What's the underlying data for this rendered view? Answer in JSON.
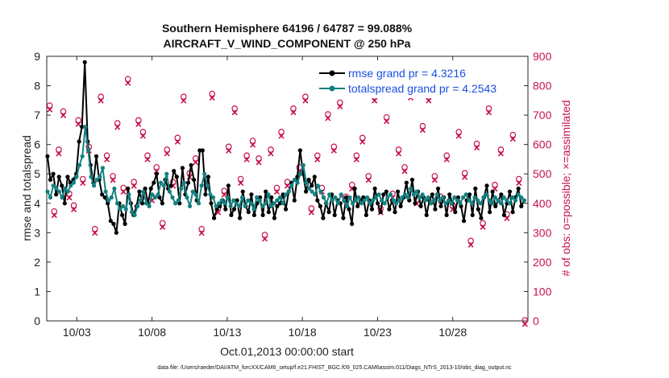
{
  "chart_data": {
    "type": "line",
    "title": "Southern Hemisphere 64196 / 64787 = 99.088%",
    "subtitle": "AIRCRAFT_V_WIND_COMPONENT @ 250 hPa",
    "xlabel": "Oct.01,2013 00:00:00 start",
    "ylabel_left": "rmse and totalspread",
    "ylabel_right": "# of obs: o=possible; ×=assimilated",
    "xlim": [
      1,
      33
    ],
    "ylim_left": [
      0,
      9
    ],
    "ylim_right": [
      0,
      900
    ],
    "xticks": [
      3,
      8,
      13,
      18,
      23,
      28
    ],
    "xtick_labels": [
      "10/03",
      "10/08",
      "10/13",
      "10/18",
      "10/23",
      "10/28"
    ],
    "yticks_left": [
      "0",
      "1",
      "2",
      "3",
      "4",
      "5",
      "6",
      "7",
      "8",
      "9"
    ],
    "yticks_right": [
      "0",
      "100",
      "200",
      "300",
      "400",
      "500",
      "600",
      "700",
      "800",
      "900"
    ],
    "legend": [
      "rmse grand pr = 4.3216",
      "totalspread grand pr = 4.2543"
    ],
    "series": [
      {
        "name": "rmse",
        "color": "#000000",
        "values": [
          5.6,
          4.8,
          5.0,
          4.3,
          4.9,
          4.6,
          4.0,
          4.9,
          4.7,
          4.8,
          5.0,
          6.1,
          6.6,
          8.8,
          6.1,
          5.3,
          4.7,
          5.6,
          4.8,
          4.3,
          4.2,
          4.0,
          3.4,
          3.3,
          3.0,
          4.0,
          3.6,
          3.3,
          4.5,
          4.0,
          3.6,
          3.9,
          4.4,
          4.0,
          4.5,
          4.0,
          4.5,
          4.7,
          5.0,
          4.2,
          4.0,
          4.8,
          4.5,
          4.6,
          5.1,
          4.9,
          4.0,
          5.2,
          4.3,
          4.7,
          5.3,
          4.8,
          4.1,
          5.8,
          5.8,
          4.3,
          4.9,
          4.0,
          3.5,
          3.8,
          3.9,
          4.1,
          3.8,
          4.6,
          3.6,
          3.8,
          4.1,
          3.5,
          4.4,
          3.9,
          3.7,
          4.3,
          3.6,
          4.0,
          4.2,
          3.6,
          4.4,
          3.7,
          4.2,
          3.5,
          3.9,
          4.0,
          4.3,
          3.8,
          4.4,
          4.7,
          4.1,
          4.9,
          5.8,
          5.0,
          4.4,
          4.8,
          4.6,
          4.9,
          4.1,
          3.9,
          3.5,
          4.0,
          3.7,
          4.3,
          3.6,
          4.1,
          4.0,
          3.5,
          4.2,
          3.8,
          3.3,
          4.5,
          3.9,
          4.1,
          4.2,
          3.6,
          4.1,
          3.8,
          4.5,
          4.0,
          3.7,
          4.3,
          4.4,
          3.8,
          4.1,
          3.7,
          4.4,
          3.9,
          4.2,
          4.7,
          4.1,
          4.8,
          4.0,
          4.4,
          3.9,
          4.2,
          3.6,
          4.1,
          4.3,
          3.8,
          4.5,
          3.9,
          4.2,
          3.6,
          4.3,
          4.0,
          3.7,
          4.2,
          3.9,
          3.4,
          4.1,
          4.3,
          3.6,
          4.5,
          3.8,
          3.5,
          4.2,
          4.6,
          3.7,
          4.4,
          3.9,
          4.1,
          4.3,
          3.6,
          4.0,
          4.4,
          3.7,
          4.2,
          4.5,
          3.9,
          4.1
        ],
        "marker": "o"
      },
      {
        "name": "totalspread",
        "color": "#148080",
        "values": [
          4.4,
          4.2,
          4.6,
          4.5,
          4.4,
          4.2,
          4.5,
          4.4,
          4.6,
          4.7,
          4.9,
          5.3,
          5.6,
          6.6,
          5.8,
          4.9,
          4.6,
          4.8,
          4.9,
          5.2,
          4.4,
          4.1,
          4.2,
          4.5,
          4.0,
          3.8,
          3.9,
          3.8,
          4.3,
          3.7,
          3.6,
          3.9,
          4.1,
          4.4,
          4.0,
          3.9,
          4.3,
          4.2,
          4.3,
          4.7,
          4.6,
          5.0,
          4.4,
          4.2,
          4.0,
          4.1,
          4.5,
          4.7,
          4.2,
          3.9,
          4.4,
          4.3,
          4.0,
          4.6,
          5.0,
          4.6,
          4.3,
          4.2,
          3.9,
          4.0,
          4.1,
          4.0,
          4.2,
          3.9,
          4.1,
          4.0,
          3.9,
          4.2,
          3.9,
          4.1,
          4.0,
          3.8,
          4.2,
          4.1,
          3.9,
          4.0,
          4.3,
          3.9,
          4.0,
          4.1,
          4.2,
          4.0,
          4.3,
          4.4,
          4.6,
          4.8,
          4.7,
          5.0,
          5.3,
          4.7,
          4.5,
          4.4,
          4.3,
          4.6,
          4.4,
          4.2,
          4.0,
          4.3,
          4.1,
          4.2,
          4.0,
          4.3,
          4.1,
          3.9,
          4.2,
          4.0,
          4.1,
          4.2,
          4.0,
          4.1,
          4.2,
          4.0,
          4.1,
          4.2,
          4.3,
          4.1,
          4.0,
          4.2,
          4.3,
          4.1,
          4.0,
          4.1,
          4.2,
          4.3,
          4.2,
          4.5,
          4.3,
          4.4,
          4.2,
          4.3,
          4.1,
          4.2,
          4.0,
          4.1,
          4.3,
          4.1,
          4.2,
          4.0,
          4.1,
          4.0,
          4.2,
          4.1,
          4.0,
          4.2,
          4.3,
          4.1,
          4.0,
          4.2,
          4.1,
          4.0,
          4.2,
          4.3,
          4.1,
          4.0,
          4.2,
          4.1,
          4.0,
          4.2,
          4.1,
          4.0,
          4.2,
          4.1,
          4.3,
          4.2,
          4.1
        ],
        "marker": "o"
      }
    ],
    "obs_counts": {
      "name": "# of obs",
      "color": "#c8124e",
      "x": [
        1.2,
        1.5,
        1.8,
        2.1,
        2.5,
        2.8,
        3.1,
        3.4,
        3.8,
        4.2,
        4.6,
        5.0,
        5.4,
        5.7,
        6.1,
        6.4,
        6.8,
        7.1,
        7.4,
        7.7,
        8.0,
        8.3,
        8.7,
        9.0,
        9.4,
        9.7,
        10.1,
        10.5,
        10.9,
        11.3,
        11.6,
        12.0,
        12.4,
        12.8,
        13.1,
        13.5,
        13.9,
        14.3,
        14.7,
        15.1,
        15.5,
        15.9,
        16.3,
        16.6,
        17.0,
        17.4,
        17.8,
        18.2,
        18.6,
        19.0,
        19.3,
        19.7,
        20.1,
        20.5,
        20.9,
        21.3,
        21.6,
        22.0,
        22.4,
        22.8,
        23.2,
        23.6,
        24.0,
        24.4,
        24.8,
        25.2,
        25.6,
        26.0,
        26.4,
        26.8,
        27.2,
        27.6,
        28.0,
        28.4,
        28.8,
        29.2,
        29.6,
        30.0,
        30.4,
        30.8,
        31.2,
        31.6,
        32.0,
        32.4,
        32.8
      ],
      "values": [
        730,
        370,
        580,
        710,
        430,
        390,
        680,
        480,
        590,
        310,
        760,
        560,
        490,
        670,
        450,
        820,
        470,
        680,
        640,
        560,
        420,
        520,
        330,
        580,
        470,
        620,
        760,
        500,
        550,
        310,
        480,
        770,
        380,
        440,
        590,
        720,
        480,
        560,
        610,
        550,
        290,
        580,
        450,
        640,
        470,
        720,
        520,
        760,
        380,
        560,
        450,
        700,
        590,
        740,
        420,
        460,
        560,
        620,
        490,
        760,
        380,
        690,
        430,
        580,
        520,
        770,
        410,
        660,
        760,
        490,
        420,
        560,
        390,
        640,
        500,
        270,
        600,
        330,
        720,
        460,
        580,
        360,
        630,
        480,
        0
      ]
    }
  }
}
